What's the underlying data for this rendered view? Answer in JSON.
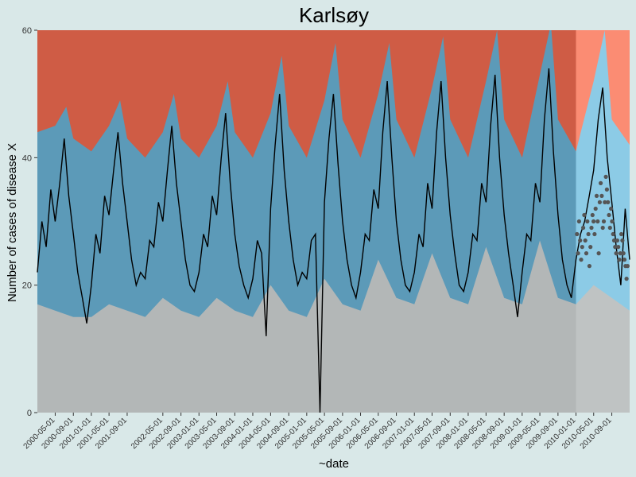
{
  "chart_data": {
    "type": "area",
    "title": "Karlsøy",
    "xlabel": "~date",
    "ylabel": "Number of cases of disease X",
    "x_range": [
      "2000-01-01",
      "2010-12-31"
    ],
    "ylim": [
      0,
      60
    ],
    "y_ticks": [
      0,
      20,
      40,
      60
    ],
    "x_tick_labels": [
      "2000-05-01",
      "2000-09-01",
      "2001-01-01",
      "2001-05-01",
      "2001-09-01",
      "2002-05-01",
      "2002-09-01",
      "2003-01-01",
      "2003-05-01",
      "2003-09-01",
      "2004-01-01",
      "2004-05-01",
      "2004-09-01",
      "2005-01-01",
      "2005-05-01",
      "2005-09-01",
      "2006-01-01",
      "2006-05-01",
      "2006-09-01",
      "2007-01-01",
      "2007-05-01",
      "2007-09-01",
      "2008-01-01",
      "2008-05-01",
      "2008-09-01",
      "2009-01-01",
      "2009-05-01",
      "2009-09-01",
      "2010-01-01",
      "2010-05-01",
      "2010-09-01"
    ],
    "forecast_start": "2010-01-01",
    "grid": false,
    "legend": "none",
    "colors": {
      "background": "#d9e8e8",
      "low_band": "#b3b7b7",
      "normal_band": "#5c9ab8",
      "high_band": "#cf5c45",
      "forecast_low_band": "#bfc3c3",
      "forecast_normal_band": "#8ccbe6",
      "forecast_high_band": "#fb8c73",
      "observed_line": "#000000",
      "forecast_points": "#555555"
    },
    "series": [
      {
        "name": "baseline_threshold",
        "points": [
          [
            "2000-01-01",
            17
          ],
          [
            "2000-05-01",
            16
          ],
          [
            "2000-09-01",
            15
          ],
          [
            "2001-01-01",
            15
          ],
          [
            "2001-05-01",
            17
          ],
          [
            "2001-09-01",
            16
          ],
          [
            "2002-01-01",
            15
          ],
          [
            "2002-05-01",
            18
          ],
          [
            "2002-09-01",
            16
          ],
          [
            "2003-01-01",
            15
          ],
          [
            "2003-05-01",
            18
          ],
          [
            "2003-09-01",
            16
          ],
          [
            "2004-01-01",
            15
          ],
          [
            "2004-05-01",
            20
          ],
          [
            "2004-09-01",
            16
          ],
          [
            "2005-01-01",
            15
          ],
          [
            "2005-05-01",
            21
          ],
          [
            "2005-09-01",
            17
          ],
          [
            "2006-01-01",
            16
          ],
          [
            "2006-05-01",
            24
          ],
          [
            "2006-09-01",
            18
          ],
          [
            "2007-01-01",
            17
          ],
          [
            "2007-05-01",
            25
          ],
          [
            "2007-09-01",
            18
          ],
          [
            "2008-01-01",
            17
          ],
          [
            "2008-05-01",
            26
          ],
          [
            "2008-09-01",
            18
          ],
          [
            "2009-01-01",
            17
          ],
          [
            "2009-05-01",
            27
          ],
          [
            "2009-09-01",
            18
          ],
          [
            "2010-01-01",
            17
          ],
          [
            "2010-05-01",
            20
          ],
          [
            "2010-09-01",
            18
          ],
          [
            "2010-12-31",
            16
          ]
        ]
      },
      {
        "name": "upper_threshold",
        "points": [
          [
            "2000-01-01",
            44
          ],
          [
            "2000-05-01",
            45
          ],
          [
            "2000-07-15",
            48
          ],
          [
            "2000-09-01",
            43
          ],
          [
            "2001-01-01",
            41
          ],
          [
            "2001-05-01",
            45
          ],
          [
            "2001-07-15",
            49
          ],
          [
            "2001-09-01",
            43
          ],
          [
            "2002-01-01",
            40
          ],
          [
            "2002-05-01",
            44
          ],
          [
            "2002-07-15",
            50
          ],
          [
            "2002-09-01",
            43
          ],
          [
            "2003-01-01",
            40
          ],
          [
            "2003-05-01",
            45
          ],
          [
            "2003-07-15",
            52
          ],
          [
            "2003-09-01",
            44
          ],
          [
            "2004-01-01",
            40
          ],
          [
            "2004-05-01",
            47
          ],
          [
            "2004-07-15",
            56
          ],
          [
            "2004-09-01",
            45
          ],
          [
            "2005-01-01",
            40
          ],
          [
            "2005-05-01",
            49
          ],
          [
            "2005-07-15",
            58
          ],
          [
            "2005-09-01",
            46
          ],
          [
            "2006-01-01",
            40
          ],
          [
            "2006-05-01",
            50
          ],
          [
            "2006-07-15",
            58
          ],
          [
            "2006-09-01",
            46
          ],
          [
            "2007-01-01",
            40
          ],
          [
            "2007-05-01",
            51
          ],
          [
            "2007-07-15",
            59
          ],
          [
            "2007-09-01",
            46
          ],
          [
            "2008-01-01",
            40
          ],
          [
            "2008-05-01",
            52
          ],
          [
            "2008-07-15",
            60
          ],
          [
            "2008-09-01",
            46
          ],
          [
            "2009-01-01",
            40
          ],
          [
            "2009-05-01",
            53
          ],
          [
            "2009-07-15",
            61
          ],
          [
            "2009-09-01",
            46
          ],
          [
            "2010-01-01",
            41
          ],
          [
            "2010-05-01",
            52
          ],
          [
            "2010-07-15",
            60
          ],
          [
            "2010-09-01",
            46
          ],
          [
            "2010-12-31",
            42
          ]
        ]
      },
      {
        "name": "observed_cases",
        "points": [
          [
            "2000-01-01",
            22
          ],
          [
            "2000-02-01",
            30
          ],
          [
            "2000-03-01",
            26
          ],
          [
            "2000-04-01",
            35
          ],
          [
            "2000-05-01",
            30
          ],
          [
            "2000-06-01",
            36
          ],
          [
            "2000-07-01",
            43
          ],
          [
            "2000-08-01",
            34
          ],
          [
            "2000-09-01",
            28
          ],
          [
            "2000-10-01",
            22
          ],
          [
            "2000-11-01",
            18
          ],
          [
            "2000-12-01",
            14
          ],
          [
            "2001-01-01",
            20
          ],
          [
            "2001-02-01",
            28
          ],
          [
            "2001-03-01",
            25
          ],
          [
            "2001-04-01",
            34
          ],
          [
            "2001-05-01",
            31
          ],
          [
            "2001-06-01",
            38
          ],
          [
            "2001-07-01",
            44
          ],
          [
            "2001-08-01",
            36
          ],
          [
            "2001-09-01",
            30
          ],
          [
            "2001-10-01",
            24
          ],
          [
            "2001-11-01",
            20
          ],
          [
            "2001-12-01",
            22
          ],
          [
            "2002-01-01",
            21
          ],
          [
            "2002-02-01",
            27
          ],
          [
            "2002-03-01",
            26
          ],
          [
            "2002-04-01",
            33
          ],
          [
            "2002-05-01",
            30
          ],
          [
            "2002-06-01",
            38
          ],
          [
            "2002-07-01",
            45
          ],
          [
            "2002-08-01",
            36
          ],
          [
            "2002-09-01",
            30
          ],
          [
            "2002-10-01",
            24
          ],
          [
            "2002-11-01",
            20
          ],
          [
            "2002-12-01",
            19
          ],
          [
            "2003-01-01",
            22
          ],
          [
            "2003-02-01",
            28
          ],
          [
            "2003-03-01",
            26
          ],
          [
            "2003-04-01",
            34
          ],
          [
            "2003-05-01",
            31
          ],
          [
            "2003-06-01",
            40
          ],
          [
            "2003-07-01",
            47
          ],
          [
            "2003-08-01",
            36
          ],
          [
            "2003-09-01",
            28
          ],
          [
            "2003-10-01",
            23
          ],
          [
            "2003-11-01",
            20
          ],
          [
            "2003-12-01",
            18
          ],
          [
            "2004-01-01",
            21
          ],
          [
            "2004-02-01",
            27
          ],
          [
            "2004-03-01",
            25
          ],
          [
            "2004-04-01",
            12
          ],
          [
            "2004-05-01",
            32
          ],
          [
            "2004-06-01",
            42
          ],
          [
            "2004-07-01",
            50
          ],
          [
            "2004-08-01",
            38
          ],
          [
            "2004-09-01",
            30
          ],
          [
            "2004-10-01",
            24
          ],
          [
            "2004-11-01",
            20
          ],
          [
            "2004-12-01",
            22
          ],
          [
            "2005-01-01",
            21
          ],
          [
            "2005-02-01",
            27
          ],
          [
            "2005-03-01",
            28
          ],
          [
            "2005-04-01",
            0
          ],
          [
            "2005-05-01",
            33
          ],
          [
            "2005-06-01",
            43
          ],
          [
            "2005-07-01",
            50
          ],
          [
            "2005-08-01",
            39
          ],
          [
            "2005-09-01",
            30
          ],
          [
            "2005-10-01",
            24
          ],
          [
            "2005-11-01",
            20
          ],
          [
            "2005-12-01",
            18
          ],
          [
            "2006-01-01",
            22
          ],
          [
            "2006-02-01",
            28
          ],
          [
            "2006-03-01",
            27
          ],
          [
            "2006-04-01",
            35
          ],
          [
            "2006-05-01",
            32
          ],
          [
            "2006-06-01",
            44
          ],
          [
            "2006-07-01",
            52
          ],
          [
            "2006-08-01",
            40
          ],
          [
            "2006-09-01",
            30
          ],
          [
            "2006-10-01",
            24
          ],
          [
            "2006-11-01",
            20
          ],
          [
            "2006-12-01",
            19
          ],
          [
            "2007-01-01",
            22
          ],
          [
            "2007-02-01",
            28
          ],
          [
            "2007-03-01",
            26
          ],
          [
            "2007-04-01",
            36
          ],
          [
            "2007-05-01",
            32
          ],
          [
            "2007-06-01",
            44
          ],
          [
            "2007-07-01",
            52
          ],
          [
            "2007-08-01",
            40
          ],
          [
            "2007-09-01",
            31
          ],
          [
            "2007-10-01",
            25
          ],
          [
            "2007-11-01",
            20
          ],
          [
            "2007-12-01",
            19
          ],
          [
            "2008-01-01",
            22
          ],
          [
            "2008-02-01",
            28
          ],
          [
            "2008-03-01",
            27
          ],
          [
            "2008-04-01",
            36
          ],
          [
            "2008-05-01",
            33
          ],
          [
            "2008-06-01",
            45
          ],
          [
            "2008-07-01",
            53
          ],
          [
            "2008-08-01",
            40
          ],
          [
            "2008-09-01",
            31
          ],
          [
            "2008-10-01",
            25
          ],
          [
            "2008-11-01",
            20
          ],
          [
            "2008-12-01",
            15
          ],
          [
            "2009-01-01",
            22
          ],
          [
            "2009-02-01",
            28
          ],
          [
            "2009-03-01",
            27
          ],
          [
            "2009-04-01",
            36
          ],
          [
            "2009-05-01",
            33
          ],
          [
            "2009-06-01",
            46
          ],
          [
            "2009-07-01",
            54
          ],
          [
            "2009-08-01",
            41
          ],
          [
            "2009-09-01",
            31
          ],
          [
            "2009-10-01",
            24
          ],
          [
            "2009-11-01",
            20
          ],
          [
            "2009-12-01",
            18
          ],
          [
            "2010-01-01",
            24
          ],
          [
            "2010-02-01",
            28
          ],
          [
            "2010-03-01",
            30
          ],
          [
            "2010-04-01",
            34
          ],
          [
            "2010-05-01",
            38
          ],
          [
            "2010-06-01",
            46
          ],
          [
            "2010-07-01",
            51
          ],
          [
            "2010-08-01",
            40
          ],
          [
            "2010-09-01",
            33
          ],
          [
            "2010-10-01",
            26
          ],
          [
            "2010-11-01",
            20
          ],
          [
            "2010-12-01",
            32
          ],
          [
            "2010-12-31",
            24
          ]
        ]
      },
      {
        "name": "forecast_points",
        "points": [
          [
            "2010-01-08",
            28
          ],
          [
            "2010-01-15",
            25
          ],
          [
            "2010-01-22",
            30
          ],
          [
            "2010-01-29",
            27
          ],
          [
            "2010-02-05",
            24
          ],
          [
            "2010-02-12",
            26
          ],
          [
            "2010-02-19",
            29
          ],
          [
            "2010-02-26",
            31
          ],
          [
            "2010-03-05",
            27
          ],
          [
            "2010-03-12",
            25
          ],
          [
            "2010-03-19",
            30
          ],
          [
            "2010-03-26",
            28
          ],
          [
            "2010-04-02",
            23
          ],
          [
            "2010-04-09",
            26
          ],
          [
            "2010-04-16",
            29
          ],
          [
            "2010-04-23",
            31
          ],
          [
            "2010-04-30",
            30
          ],
          [
            "2010-05-07",
            28
          ],
          [
            "2010-05-14",
            32
          ],
          [
            "2010-05-21",
            34
          ],
          [
            "2010-05-28",
            30
          ],
          [
            "2010-06-04",
            25
          ],
          [
            "2010-06-11",
            33
          ],
          [
            "2010-06-18",
            36
          ],
          [
            "2010-06-25",
            34
          ],
          [
            "2010-07-02",
            29
          ],
          [
            "2010-07-09",
            30
          ],
          [
            "2010-07-16",
            33
          ],
          [
            "2010-07-23",
            37
          ],
          [
            "2010-07-30",
            35
          ],
          [
            "2010-08-06",
            33
          ],
          [
            "2010-08-13",
            31
          ],
          [
            "2010-08-20",
            29
          ],
          [
            "2010-08-27",
            32
          ],
          [
            "2010-09-03",
            30
          ],
          [
            "2010-09-10",
            28
          ],
          [
            "2010-09-17",
            27
          ],
          [
            "2010-09-24",
            26
          ],
          [
            "2010-10-01",
            25
          ],
          [
            "2010-10-08",
            27
          ],
          [
            "2010-10-15",
            26
          ],
          [
            "2010-10-22",
            24
          ],
          [
            "2010-10-29",
            25
          ],
          [
            "2010-11-05",
            28
          ],
          [
            "2010-11-12",
            27
          ],
          [
            "2010-11-19",
            25
          ],
          [
            "2010-11-26",
            24
          ],
          [
            "2010-12-03",
            23
          ],
          [
            "2010-12-10",
            21
          ],
          [
            "2010-12-17",
            23
          ]
        ]
      }
    ]
  }
}
